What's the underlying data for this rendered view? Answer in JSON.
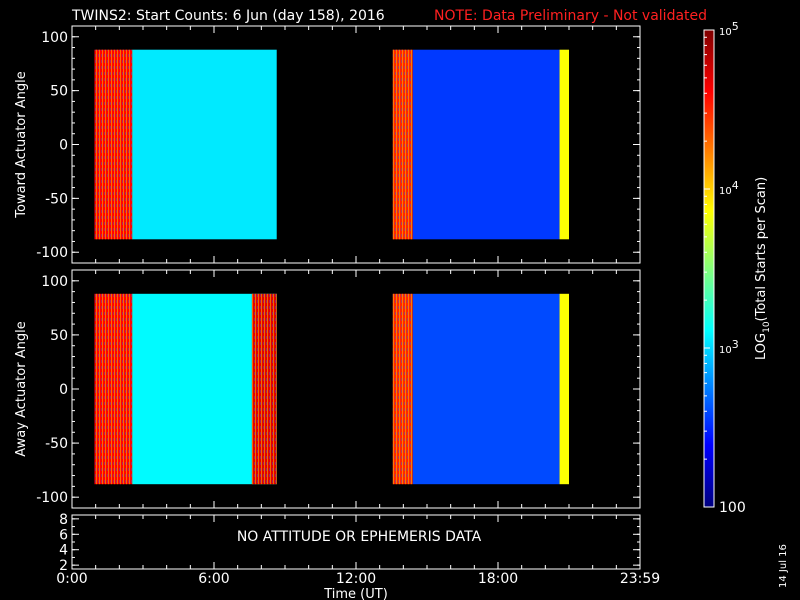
{
  "title": "TWINS2: Start Counts:  6 Jun (day 158), 2016",
  "note": "NOTE: Data Preliminary - Not validated",
  "colors": {
    "background": "#000000",
    "foreground": "#ffffff",
    "note": "#ff2020"
  },
  "stamp_date": "14 Jul 16",
  "chart_data": [
    {
      "type": "heatmap",
      "ylabel": "Toward Actuator Angle",
      "ylim": [
        -110,
        110
      ],
      "yticks": [
        "100",
        "50",
        "0",
        "-50",
        "-100"
      ],
      "ytick_values": [
        100,
        50,
        0,
        -50,
        -100
      ],
      "xlim": [
        0,
        24
      ],
      "data_blocks": [
        {
          "t_start": 0.95,
          "t_end": 8.65,
          "angle_range": [
            -88,
            88
          ]
        },
        {
          "t_start": 13.55,
          "t_end": 21.0,
          "angle_range": [
            -88,
            88
          ]
        }
      ],
      "levels_log10": [
        {
          "from": 0.95,
          "to": 2.55,
          "value": 4.6
        },
        {
          "from": 2.55,
          "to": 8.65,
          "value": 3.05
        },
        {
          "from": 13.55,
          "to": 14.4,
          "value": 4.5
        },
        {
          "from": 14.4,
          "to": 20.6,
          "value": 2.55
        },
        {
          "from": 20.6,
          "to": 21.0,
          "value": 3.85
        }
      ]
    },
    {
      "type": "heatmap",
      "ylabel": "Away Actuator Angle",
      "ylim": [
        -110,
        110
      ],
      "yticks": [
        "100",
        "50",
        "0",
        "-50",
        "-100"
      ],
      "ytick_values": [
        100,
        50,
        0,
        -50,
        -100
      ],
      "xlim": [
        0,
        24
      ],
      "xlabel": "Time (UT)",
      "xticks": [
        "0:00",
        "6:00",
        "12:00",
        "18:00",
        "23:59"
      ],
      "xtick_values": [
        0,
        6,
        12,
        18,
        24
      ],
      "data_blocks": [
        {
          "t_start": 0.95,
          "t_end": 8.65,
          "angle_range": [
            -88,
            88
          ]
        },
        {
          "t_start": 13.55,
          "t_end": 21.0,
          "angle_range": [
            -88,
            88
          ]
        }
      ],
      "levels_log10": [
        {
          "from": 0.95,
          "to": 2.55,
          "value": 4.6
        },
        {
          "from": 2.55,
          "to": 8.65,
          "value": 3.1
        },
        {
          "from": 7.6,
          "to": 8.65,
          "value": 4.7
        },
        {
          "from": 13.55,
          "to": 14.4,
          "value": 4.5
        },
        {
          "from": 14.4,
          "to": 20.6,
          "value": 2.6
        },
        {
          "from": 20.6,
          "to": 21.0,
          "value": 3.85
        }
      ]
    },
    {
      "type": "line",
      "ylim": [
        1.5,
        8.5
      ],
      "yticks": [
        "8",
        "6",
        "4",
        "2"
      ],
      "ytick_values": [
        8,
        6,
        4,
        2
      ],
      "message": "NO ATTITUDE OR EPHEMERIS DATA"
    }
  ],
  "colorbar": {
    "label_prefix": "LOG",
    "label_sub": "10",
    "label_suffix": "(Total Starts per Scan)",
    "range_log10": [
      2,
      5
    ],
    "ticks": [
      {
        "value": 5,
        "base": "10",
        "exp": "5"
      },
      {
        "value": 4,
        "base": "10",
        "exp": "4"
      },
      {
        "value": 3,
        "base": "10",
        "exp": "3"
      },
      {
        "value": 2,
        "plain": "100"
      }
    ]
  }
}
